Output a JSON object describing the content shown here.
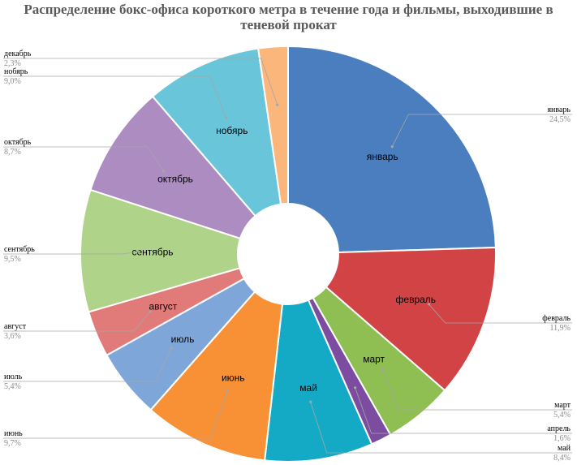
{
  "chart_data": {
    "type": "pie",
    "title": "Распределение бокс-офиса короткого метра в течение года и фильмы, выходившие в теневой прокат",
    "categories": [
      "январь",
      "февраль",
      "март",
      "апрель",
      "май",
      "июнь",
      "июль",
      "август",
      "сентябрь",
      "октябрь",
      "нобярь",
      "декабрь"
    ],
    "values": [
      24.5,
      11.9,
      5.4,
      1.6,
      8.4,
      9.7,
      5.4,
      3.6,
      9.5,
      8.7,
      9.0,
      2.3
    ],
    "value_labels": [
      "24,5%",
      "11,9%",
      "5,4%",
      "1,6%",
      "8,4%",
      "9,7%",
      "5,4%",
      "3,6%",
      "9,5%",
      "8,7%",
      "9,0%",
      "2,3%"
    ],
    "colors": [
      "#4a7ebf",
      "#d24345",
      "#8fbe52",
      "#7b4c9f",
      "#14aac6",
      "#f89136",
      "#7ea6d8",
      "#e07b7a",
      "#aed389",
      "#ad8cc2",
      "#69c5da",
      "#fbb67c"
    ],
    "grid": false,
    "legend": "none"
  }
}
